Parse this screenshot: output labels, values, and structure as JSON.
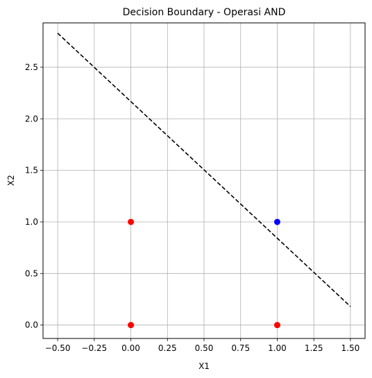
{
  "chart_data": {
    "type": "scatter",
    "title": "Decision Boundary - Operasi AND",
    "xlabel": "X1",
    "ylabel": "X2",
    "xlim": [
      -0.6,
      1.6
    ],
    "ylim": [
      -0.13,
      2.93
    ],
    "xticks": [
      -0.5,
      -0.25,
      0.0,
      0.25,
      0.5,
      0.75,
      1.0,
      1.25,
      1.5
    ],
    "xtick_labels": [
      "−0.50",
      "−0.25",
      "0.00",
      "0.25",
      "0.50",
      "0.75",
      "1.00",
      "1.25",
      "1.50"
    ],
    "yticks": [
      0.0,
      0.5,
      1.0,
      1.5,
      2.0,
      2.5
    ],
    "ytick_labels": [
      "0.0",
      "0.5",
      "1.0",
      "1.5",
      "2.0",
      "2.5"
    ],
    "grid": true,
    "points": [
      {
        "x": 0,
        "y": 0,
        "color": "#ff0000"
      },
      {
        "x": 0,
        "y": 1,
        "color": "#ff0000"
      },
      {
        "x": 1,
        "y": 0,
        "color": "#ff0000"
      },
      {
        "x": 1,
        "y": 1,
        "color": "#0000ff"
      }
    ],
    "boundary": {
      "style": "dashed",
      "color": "#000000",
      "x": [
        -0.5,
        1.5
      ],
      "y": [
        2.83,
        0.18
      ]
    }
  }
}
